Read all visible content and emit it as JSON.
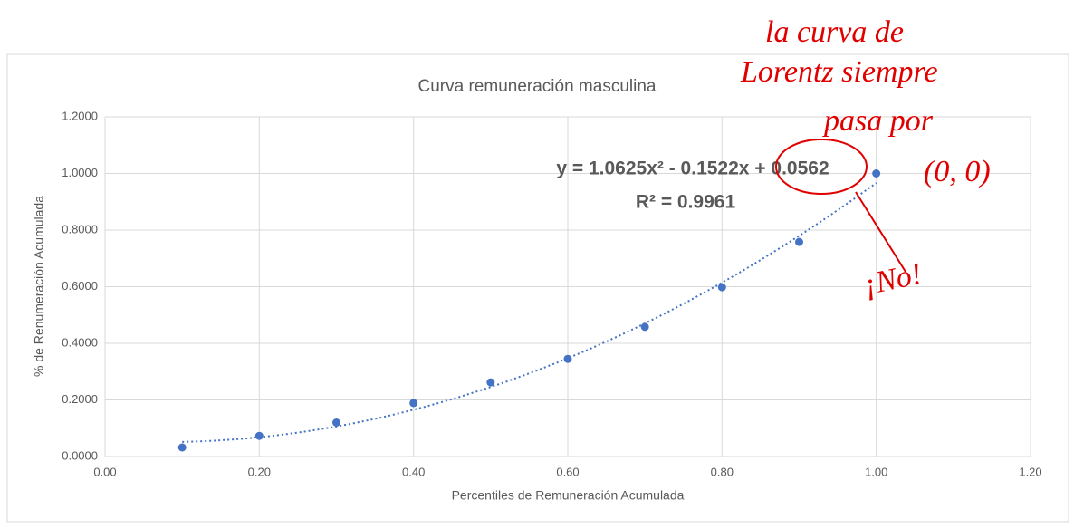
{
  "chart_data": {
    "type": "scatter",
    "title": "Curva remuneración masculina",
    "x_label": "Percentiles de Remuneración Acumulada",
    "y_label": "% de Renumeración Acumulada",
    "x": [
      0.1,
      0.2,
      0.3,
      0.4,
      0.5,
      0.6,
      0.7,
      0.8,
      0.9,
      1.0
    ],
    "series": [
      {
        "name": "Remuneración masculina",
        "color": "#4472c4",
        "values": [
          0.032,
          0.073,
          0.12,
          0.189,
          0.262,
          0.345,
          0.458,
          0.598,
          0.758,
          1.0
        ]
      }
    ],
    "trendline": {
      "equation": "y = 1.0625x² - 0.1522x + 0.0562",
      "r2": "R² = 0.9961",
      "coefficients": [
        1.0625,
        -0.1522,
        0.0562
      ]
    },
    "xlim": [
      0,
      1.2
    ],
    "ylim": [
      0,
      1.2
    ],
    "xticks": [
      {
        "value": 0,
        "label": "0.00"
      },
      {
        "value": 0.2,
        "label": "0.20"
      },
      {
        "value": 0.4,
        "label": "0.40"
      },
      {
        "value": 0.6,
        "label": "0.60"
      },
      {
        "value": 0.8,
        "label": "0.80"
      },
      {
        "value": 1.0,
        "label": "1.00"
      },
      {
        "value": 1.2,
        "label": "1.20"
      }
    ],
    "yticks": [
      {
        "value": 0,
        "label": "0.0000"
      },
      {
        "value": 0.2,
        "label": "0.2000"
      },
      {
        "value": 0.4,
        "label": "0.4000"
      },
      {
        "value": 0.6,
        "label": "0.6000"
      },
      {
        "value": 0.8,
        "label": "0.8000"
      },
      {
        "value": 1.0,
        "label": "1.0000"
      },
      {
        "value": 1.2,
        "label": "1.2000"
      }
    ],
    "grid": true,
    "annotations": [
      "la curva de",
      "Lorentz siempre",
      "pasa por",
      "(0, 0)",
      "¡No!"
    ]
  }
}
